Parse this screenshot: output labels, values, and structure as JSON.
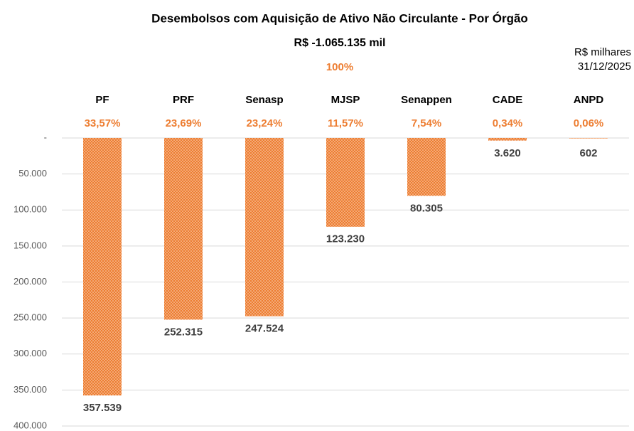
{
  "chart_data": {
    "type": "bar",
    "title": "Desembolsos com Aquisição de Ativo Não Circulante - Por Órgão",
    "subtitle": "R$ -1.065.135 mil",
    "total_share": "100%",
    "unit_note": "R$ milhares",
    "date": "31/12/2025",
    "categories": [
      "PF",
      "PRF",
      "Senasp",
      "MJSP",
      "Senappen",
      "CADE",
      "ANPD"
    ],
    "shares": [
      "33,57%",
      "23,69%",
      "23,24%",
      "11,57%",
      "7,54%",
      "0,34%",
      "0,06%"
    ],
    "values": [
      357539,
      252315,
      247524,
      123230,
      80305,
      3620,
      602
    ],
    "value_labels": [
      "357.539",
      "252.315",
      "247.524",
      "123.230",
      "80.305",
      "3.620",
      "602"
    ],
    "color": "#ED7D31",
    "y_inverted": true,
    "grid": true,
    "ylim": [
      0,
      400000
    ],
    "yticks": [
      {
        "value": 0,
        "label": "-"
      },
      {
        "value": 50000,
        "label": "50.000"
      },
      {
        "value": 100000,
        "label": "100.000"
      },
      {
        "value": 150000,
        "label": "150.000"
      },
      {
        "value": 200000,
        "label": "200.000"
      },
      {
        "value": 250000,
        "label": "250.000"
      },
      {
        "value": 300000,
        "label": "300.000"
      },
      {
        "value": 350000,
        "label": "350.000"
      },
      {
        "value": 400000,
        "label": "400.000"
      }
    ]
  }
}
